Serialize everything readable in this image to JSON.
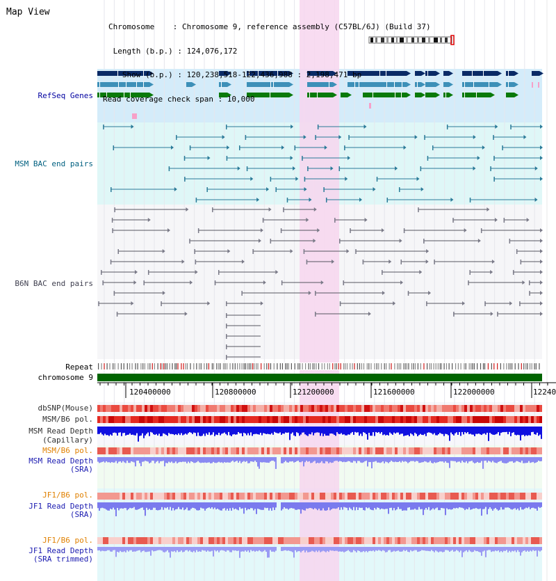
{
  "title": "Map View",
  "info": {
    "chromosome_line": "Chromosome    : Chromosome 9, reference assembly (C57BL/6J) (Build 37)",
    "length_line": " Length (b.p.) : 124,076,172",
    "show_line": "   Show (b.p.) : 120,238,518-122,436,988 : 2,198,471 bp",
    "coverage_line": "Read coverage check span : 10,000"
  },
  "tracks": {
    "refseq": "RefSeq Genes",
    "msm_bac": "MSM BAC end pairs",
    "b6n_bac": "B6N BAC end pairs",
    "repeat": "Repeat",
    "chromosome": "chromosome 9",
    "dbsnp": "dbSNP(Mouse)",
    "msm_b6_pol": "MSM/B6 pol.",
    "msm_depth_cap_1": "MSM Read Depth",
    "msm_depth_cap_2": "(Capillary)",
    "msm_b6_pol_sra": "MSM/B6 pol.",
    "msm_depth_sra_1": "MSM Read Depth",
    "msm_depth_sra_2": "(SRA)",
    "jf1_b6_pol": "JF1/B6 pol.",
    "jf1_depth_1": "JF1 Read Depth",
    "jf1_depth_2": "(SRA)",
    "jf1_b6_pol_2": "JF1/B6 pol.",
    "jf1_trim_1": "JF1 Read Depth",
    "jf1_trim_2": "(SRA trimmed)"
  },
  "ruler": {
    "ticks": [
      "120400000",
      "120800000",
      "121200000",
      "121600000",
      "122000000",
      "12240"
    ]
  },
  "colors": {
    "refseq_bg": "#d4ecfa",
    "msm_bg": "#dff7f7",
    "b6n_bg": "#f6f6f8",
    "highlight": "#f7d6ef",
    "refseq_label": "#0000a0",
    "msm_label": "#006080",
    "b6n_label": "#404050",
    "pol_orange": "#e08000",
    "depth_blue": "#1a1ab0",
    "chrom_green": "#006400"
  }
}
